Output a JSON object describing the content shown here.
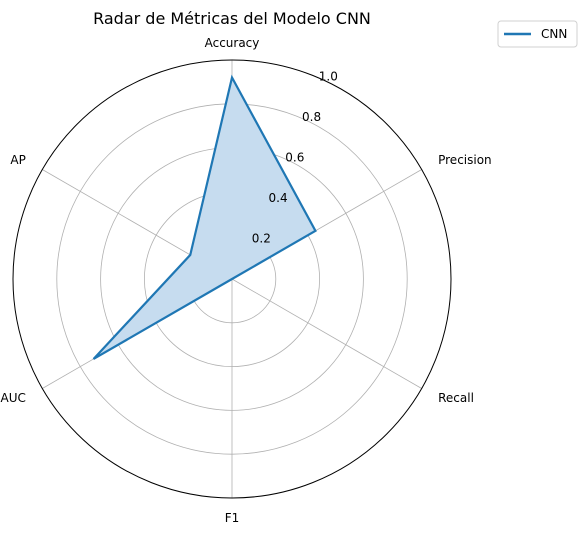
{
  "chart_data": {
    "type": "radar",
    "title": "Radar de Métricas del Modelo CNN",
    "categories": [
      "Accuracy",
      "Precision",
      "Recall",
      "F1",
      "AUC",
      "AP"
    ],
    "series": [
      {
        "name": "CNN",
        "values": [
          0.92,
          0.44,
          0.0,
          0.0,
          0.73,
          0.22
        ]
      }
    ],
    "rlim": [
      0,
      1.0
    ],
    "radial_ticks": [
      0.2,
      0.4,
      0.6,
      0.8,
      1.0
    ],
    "radial_tick_labels": [
      "0.2",
      "0.4",
      "0.6",
      "0.8",
      "1.0"
    ],
    "grid": true,
    "legend": "upper-right-outside",
    "colors": {
      "line": "#1f77b4",
      "fill": "#c6dcef",
      "grid": "#b0b0b0",
      "spine": "#000000"
    }
  }
}
